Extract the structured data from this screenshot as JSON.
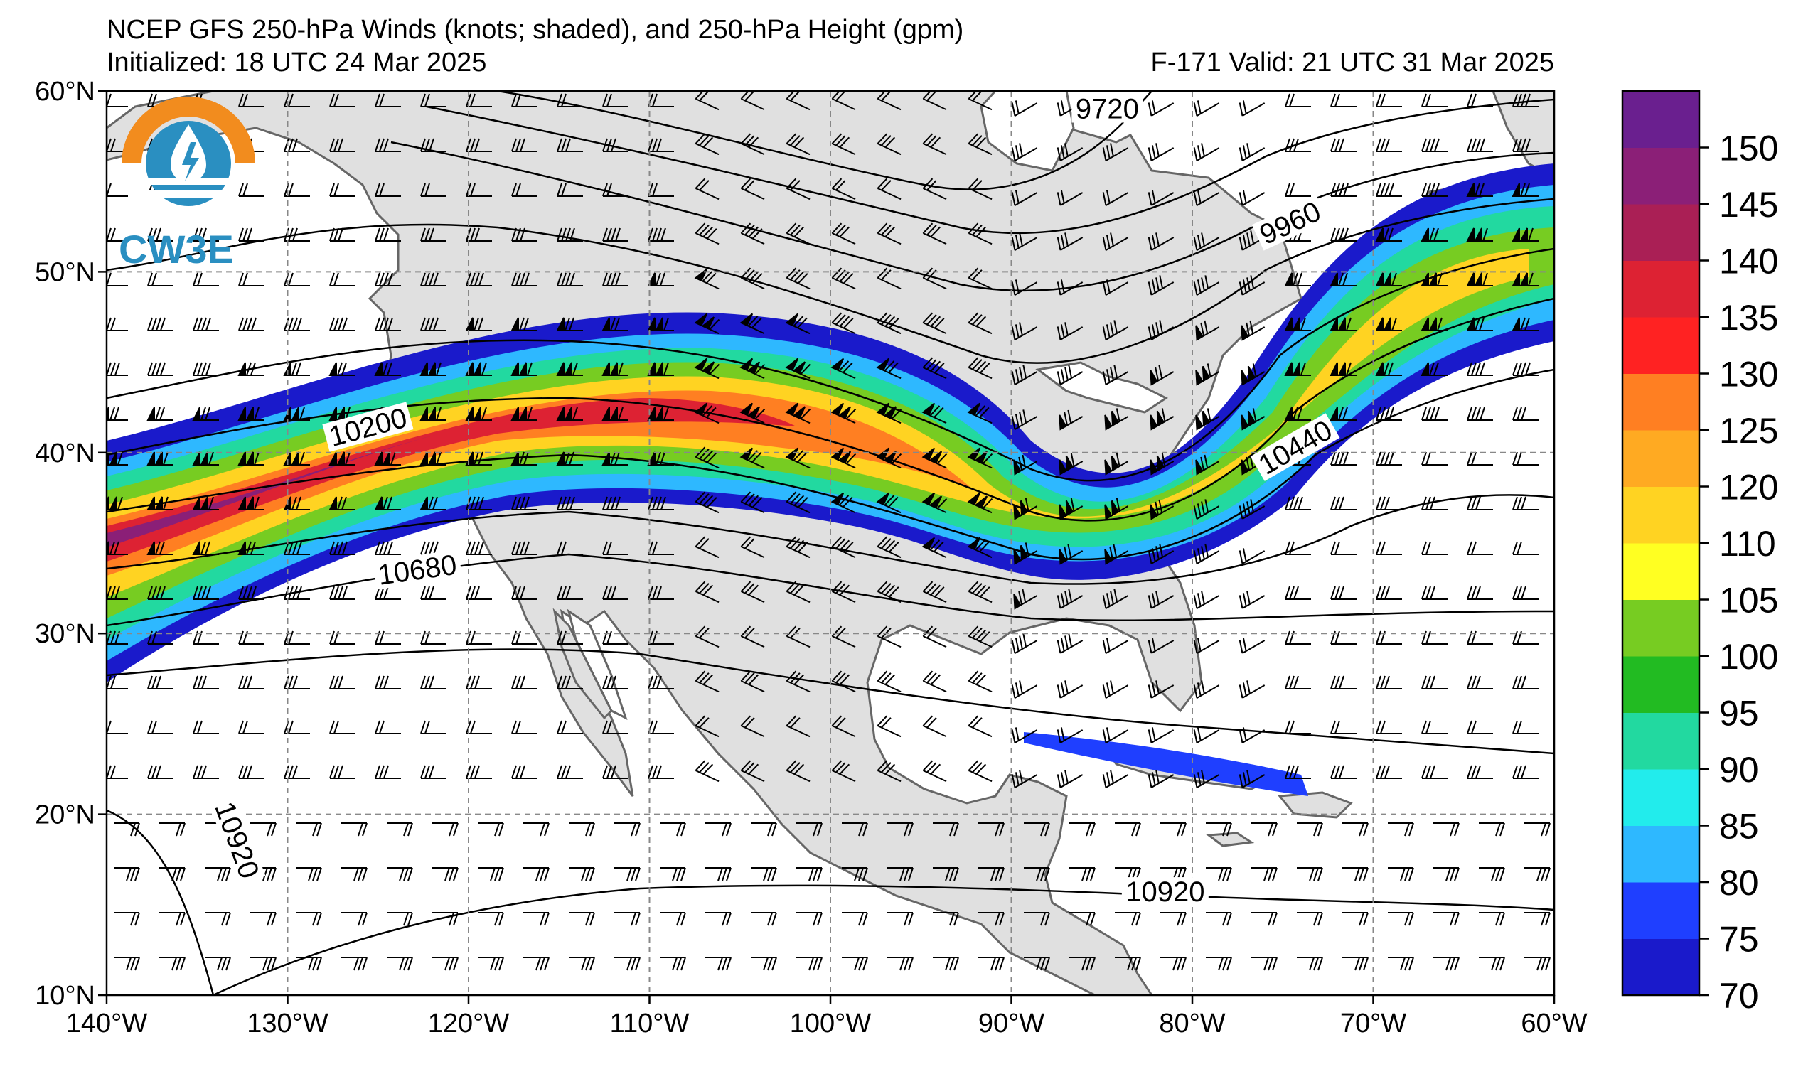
{
  "header": {
    "title": "NCEP GFS 250-hPa Winds (knots; shaded), and 250-hPa Height (gpm)",
    "initialized": "Initialized: 18 UTC 24 Mar 2025",
    "valid": "F-171  Valid: 21 UTC 31 Mar 2025"
  },
  "logo": {
    "text": "CW3E",
    "icon": "water-drop-sun-logo-icon"
  },
  "map": {
    "projection": "plate-carree",
    "lon_range": [
      -140,
      -60
    ],
    "lat_range": [
      10,
      60
    ],
    "gridlines": "dashed",
    "lon_ticks": [
      {
        "value": -140,
        "label": "140°W"
      },
      {
        "value": -130,
        "label": "130°W"
      },
      {
        "value": -120,
        "label": "120°W"
      },
      {
        "value": -110,
        "label": "110°W"
      },
      {
        "value": -100,
        "label": "100°W"
      },
      {
        "value": -90,
        "label": "90°W"
      },
      {
        "value": -80,
        "label": "80°W"
      },
      {
        "value": -70,
        "label": "70°W"
      },
      {
        "value": -60,
        "label": "60°W"
      }
    ],
    "lat_ticks": [
      {
        "value": 10,
        "label": "10°N"
      },
      {
        "value": 20,
        "label": "20°N"
      },
      {
        "value": 30,
        "label": "30°N"
      },
      {
        "value": 40,
        "label": "40°N"
      },
      {
        "value": 50,
        "label": "50°N"
      },
      {
        "value": 60,
        "label": "60°N"
      }
    ],
    "land_color": "#e0e0e0",
    "coast_color": "#666666",
    "contour_labels": [
      {
        "text": "9720",
        "lon": -84.7,
        "lat": 58.8,
        "angle": 0
      },
      {
        "text": "9960",
        "lon": -74.5,
        "lat": 52.5,
        "angle": -25
      },
      {
        "text": "10200",
        "lon": -125.5,
        "lat": 41.2,
        "angle": -15
      },
      {
        "text": "10440",
        "lon": -74.2,
        "lat": 40.1,
        "angle": -30
      },
      {
        "text": "10680",
        "lon": -122.8,
        "lat": 33.3,
        "angle": -8
      },
      {
        "text": "10920",
        "lon": -133.0,
        "lat": 18.5,
        "angle": 70
      },
      {
        "text": "10920",
        "lon": -81.5,
        "lat": 15.5,
        "angle": 0
      }
    ]
  },
  "colorbar": {
    "levels": [
      70,
      75,
      80,
      85,
      90,
      95,
      100,
      105,
      110,
      120,
      125,
      130,
      135,
      140,
      145,
      150,
      155
    ],
    "tick_labels": [
      "70",
      "75",
      "80",
      "85",
      "90",
      "95",
      "100",
      "105",
      "110",
      "120",
      "125",
      "130",
      "135",
      "140",
      "145",
      "150"
    ],
    "colors": [
      "#1a1acb",
      "#1f3fff",
      "#2eb8ff",
      "#22ecec",
      "#22d9a0",
      "#22bb22",
      "#77cc22",
      "#ffff22",
      "#ffd322",
      "#ffaa22",
      "#ff7f22",
      "#ff2222",
      "#dd2233",
      "#aa1f55",
      "#8b1f77",
      "#6a1f8f"
    ]
  }
}
